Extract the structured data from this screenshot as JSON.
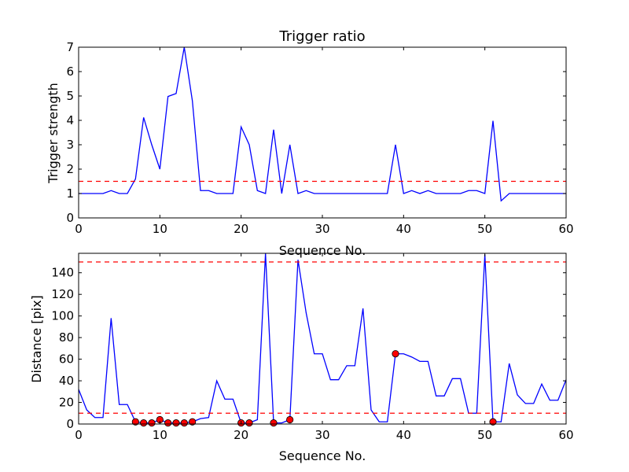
{
  "chart_data": [
    {
      "type": "line",
      "title": "Trigger ratio",
      "xlabel": "Sequence No.",
      "ylabel": "Trigger strength",
      "xlim": [
        0,
        60
      ],
      "ylim": [
        0,
        7
      ],
      "xticks": [
        "0",
        "10",
        "20",
        "30",
        "40",
        "50",
        "60"
      ],
      "yticks": [
        "0",
        "1",
        "2",
        "3",
        "4",
        "5",
        "6",
        "7"
      ],
      "line_color": "#0000ff",
      "threshold_color": "#ff0000",
      "thresholds": [
        1.5
      ],
      "grid": false,
      "series": [
        {
          "x": [
            0,
            1,
            2,
            3,
            4,
            5,
            6,
            7,
            8,
            9,
            10,
            11,
            12,
            13,
            14,
            15,
            16,
            17,
            18,
            19,
            20,
            21,
            22,
            23,
            24,
            25,
            26,
            27,
            28,
            29,
            30,
            31,
            32,
            33,
            34,
            35,
            36,
            37,
            38,
            39,
            40,
            41,
            42,
            43,
            44,
            45,
            46,
            47,
            48,
            49,
            50,
            51,
            52,
            53,
            54,
            55,
            56,
            57,
            58,
            59,
            60
          ],
          "values": [
            1,
            1,
            1,
            1,
            1.12,
            1,
            1,
            1.6,
            4.12,
            3,
            2,
            4.98,
            5.1,
            7,
            4.8,
            1.12,
            1.12,
            1,
            1,
            1,
            3.73,
            3,
            1.12,
            1,
            3.62,
            1,
            3,
            1,
            1.12,
            1,
            1,
            1,
            1,
            1,
            1,
            1,
            1,
            1,
            1,
            3,
            1,
            1.12,
            1,
            1.12,
            1,
            1,
            1,
            1,
            1.12,
            1.12,
            1,
            3.98,
            0.7,
            1,
            1,
            1,
            1,
            1,
            1,
            1,
            1
          ]
        }
      ]
    },
    {
      "type": "line",
      "title": "",
      "xlabel": "Sequence No.",
      "ylabel": "Distance [pix]",
      "xlim": [
        0,
        60
      ],
      "ylim": [
        0,
        158
      ],
      "xticks": [
        "0",
        "10",
        "20",
        "30",
        "40",
        "50",
        "60"
      ],
      "yticks": [
        "0",
        "20",
        "40",
        "60",
        "80",
        "100",
        "120",
        "140"
      ],
      "line_color": "#0000ff",
      "threshold_color": "#ff0000",
      "marker_color": "#ff0000",
      "thresholds": [
        10,
        150
      ],
      "grid": false,
      "series": [
        {
          "x": [
            0,
            1,
            2,
            3,
            4,
            5,
            6,
            7,
            8,
            9,
            10,
            11,
            12,
            13,
            14,
            15,
            16,
            17,
            18,
            19,
            20,
            21,
            22,
            23,
            24,
            25,
            26,
            27,
            28,
            29,
            30,
            31,
            32,
            33,
            34,
            35,
            36,
            37,
            38,
            39,
            40,
            41,
            42,
            43,
            44,
            45,
            46,
            47,
            48,
            49,
            50,
            51,
            52,
            53,
            54,
            55,
            56,
            57,
            58,
            59,
            60
          ],
          "values": [
            32,
            13,
            6,
            6,
            98,
            18,
            18,
            2,
            1,
            1,
            4,
            1,
            1,
            1,
            2,
            5,
            6,
            40,
            23,
            23,
            1,
            1,
            4,
            158,
            1,
            1,
            4,
            152,
            103,
            65,
            65,
            41,
            41,
            54,
            54,
            107,
            13,
            2,
            2,
            65,
            65,
            62,
            58,
            58,
            26,
            26,
            42,
            42,
            10,
            10,
            157,
            2,
            2,
            56,
            27,
            19,
            19,
            37,
            22,
            22,
            41
          ]
        }
      ],
      "markers": {
        "x": [
          7,
          8,
          9,
          10,
          11,
          12,
          13,
          14,
          20,
          21,
          24,
          26,
          39,
          51
        ],
        "values": [
          2,
          1,
          1,
          4,
          1,
          1,
          1,
          2,
          1,
          1,
          1,
          4,
          65,
          2
        ]
      }
    }
  ]
}
